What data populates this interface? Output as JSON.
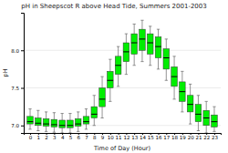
{
  "chart_data": {
    "type": "box",
    "title": "pH in Sheepscot R above Head Tide, Summers 2001-2003",
    "xlabel": "Time of Day (Hour)",
    "ylabel": "pH",
    "x": [
      0,
      1,
      2,
      3,
      4,
      5,
      6,
      7,
      8,
      9,
      10,
      11,
      12,
      13,
      14,
      15,
      16,
      17,
      18,
      19,
      20,
      21,
      22,
      23
    ],
    "median": [
      7.05,
      7.03,
      7.02,
      7.01,
      7.0,
      7.0,
      7.02,
      7.05,
      7.15,
      7.35,
      7.6,
      7.8,
      7.98,
      8.1,
      8.15,
      8.1,
      8.05,
      7.9,
      7.65,
      7.45,
      7.28,
      7.15,
      7.1,
      7.05
    ],
    "q1": [
      7.02,
      7.0,
      6.99,
      6.98,
      6.97,
      6.97,
      6.99,
      7.02,
      7.1,
      7.25,
      7.5,
      7.68,
      7.85,
      7.95,
      8.0,
      7.95,
      7.9,
      7.75,
      7.52,
      7.32,
      7.18,
      7.05,
      7.0,
      6.98
    ],
    "q3": [
      7.12,
      7.1,
      7.09,
      7.08,
      7.07,
      7.07,
      7.09,
      7.12,
      7.25,
      7.5,
      7.72,
      7.92,
      8.1,
      8.22,
      8.28,
      8.22,
      8.18,
      8.02,
      7.78,
      7.58,
      7.4,
      7.28,
      7.2,
      7.14
    ],
    "whislo": [
      6.95,
      6.93,
      6.92,
      6.91,
      6.9,
      6.9,
      6.92,
      6.95,
      7.0,
      7.1,
      7.32,
      7.52,
      7.68,
      7.8,
      7.85,
      7.8,
      7.75,
      7.6,
      7.35,
      7.18,
      7.02,
      6.93,
      6.9,
      6.92
    ],
    "whishi": [
      7.22,
      7.2,
      7.18,
      7.17,
      7.16,
      7.16,
      7.18,
      7.22,
      7.4,
      7.65,
      7.88,
      8.05,
      8.22,
      8.35,
      8.4,
      8.32,
      8.28,
      8.15,
      7.92,
      7.72,
      7.55,
      7.4,
      7.32,
      7.25
    ],
    "color": "#00ee00",
    "xlim": [
      -0.8,
      23.8
    ],
    "xticks": [
      0,
      1,
      2,
      3,
      4,
      5,
      6,
      7,
      8,
      9,
      10,
      11,
      12,
      13,
      14,
      15,
      16,
      17,
      18,
      19,
      20,
      21,
      22,
      23
    ],
    "ylim": [
      6.9,
      8.5
    ],
    "yticks": [
      {
        "value": 7.0,
        "label": "7.0"
      },
      7.5,
      {
        "value": 8.0,
        "label": "8.0"
      }
    ],
    "grid": true
  }
}
